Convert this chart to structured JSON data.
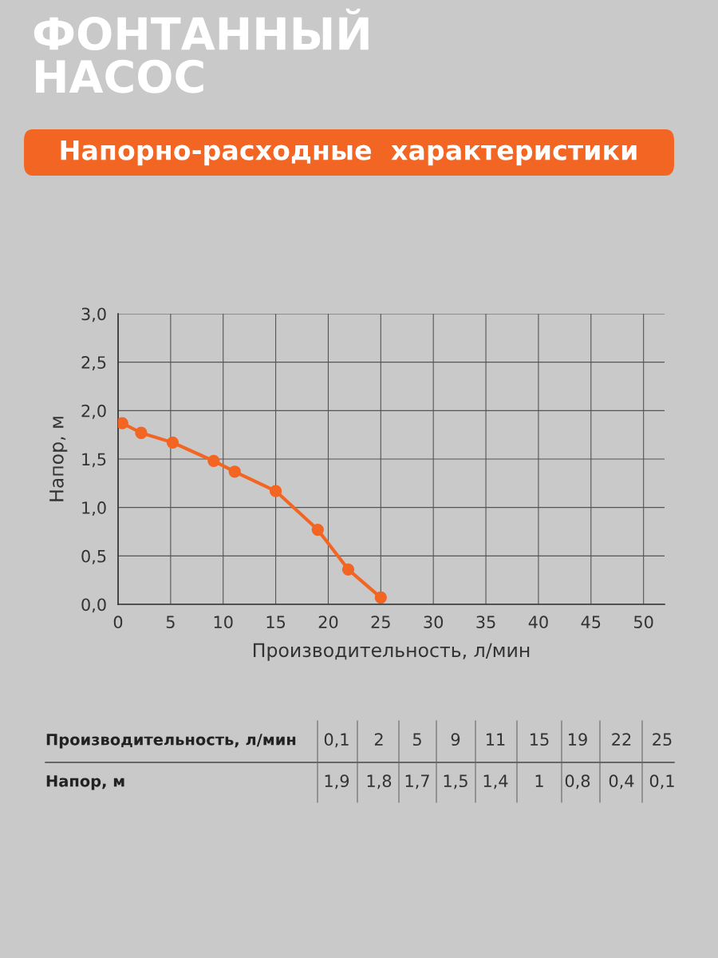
{
  "chart_data": {
    "type": "line",
    "title": "ФОНТАННЫЙ\nНАСОС",
    "subtitle": "Напорно-расходные  характеристики",
    "xlabel": "Производительность, л/мин",
    "ylabel": "Напор, м",
    "x": [
      0.4,
      2.2,
      5.2,
      9.1,
      11.1,
      15,
      19,
      21.9,
      25
    ],
    "series": [
      {
        "color": "#f26522",
        "values": [
          1.87,
          1.77,
          1.67,
          1.48,
          1.37,
          1.17,
          0.77,
          0.36,
          0.07
        ]
      }
    ],
    "annotations": [
      "0,1",
      "2",
      "5",
      "9",
      "11",
      "15",
      "19",
      "22",
      "25",
      "1,9",
      "1,8",
      "1,7",
      "1,5",
      "1,4",
      "1",
      "0,8",
      "0,4",
      "0,1"
    ],
    "xlim": [
      0,
      52
    ],
    "xticks": [
      0,
      5,
      10,
      15,
      20,
      25,
      30,
      35,
      40,
      45,
      50
    ],
    "ylim": [
      0,
      3
    ],
    "yticks": [
      {
        "value": 0,
        "label": "0,0"
      },
      {
        "value": 0.5,
        "label": "0,5"
      },
      {
        "value": 1,
        "label": "1,0"
      },
      {
        "value": 1.5,
        "label": "1,5"
      },
      {
        "value": 2,
        "label": "2,0"
      },
      {
        "value": 2.5,
        "label": "2,5"
      },
      {
        "value": 3,
        "label": "3,0"
      }
    ],
    "grid": true,
    "marker": "circle",
    "line_style": "solid"
  }
}
